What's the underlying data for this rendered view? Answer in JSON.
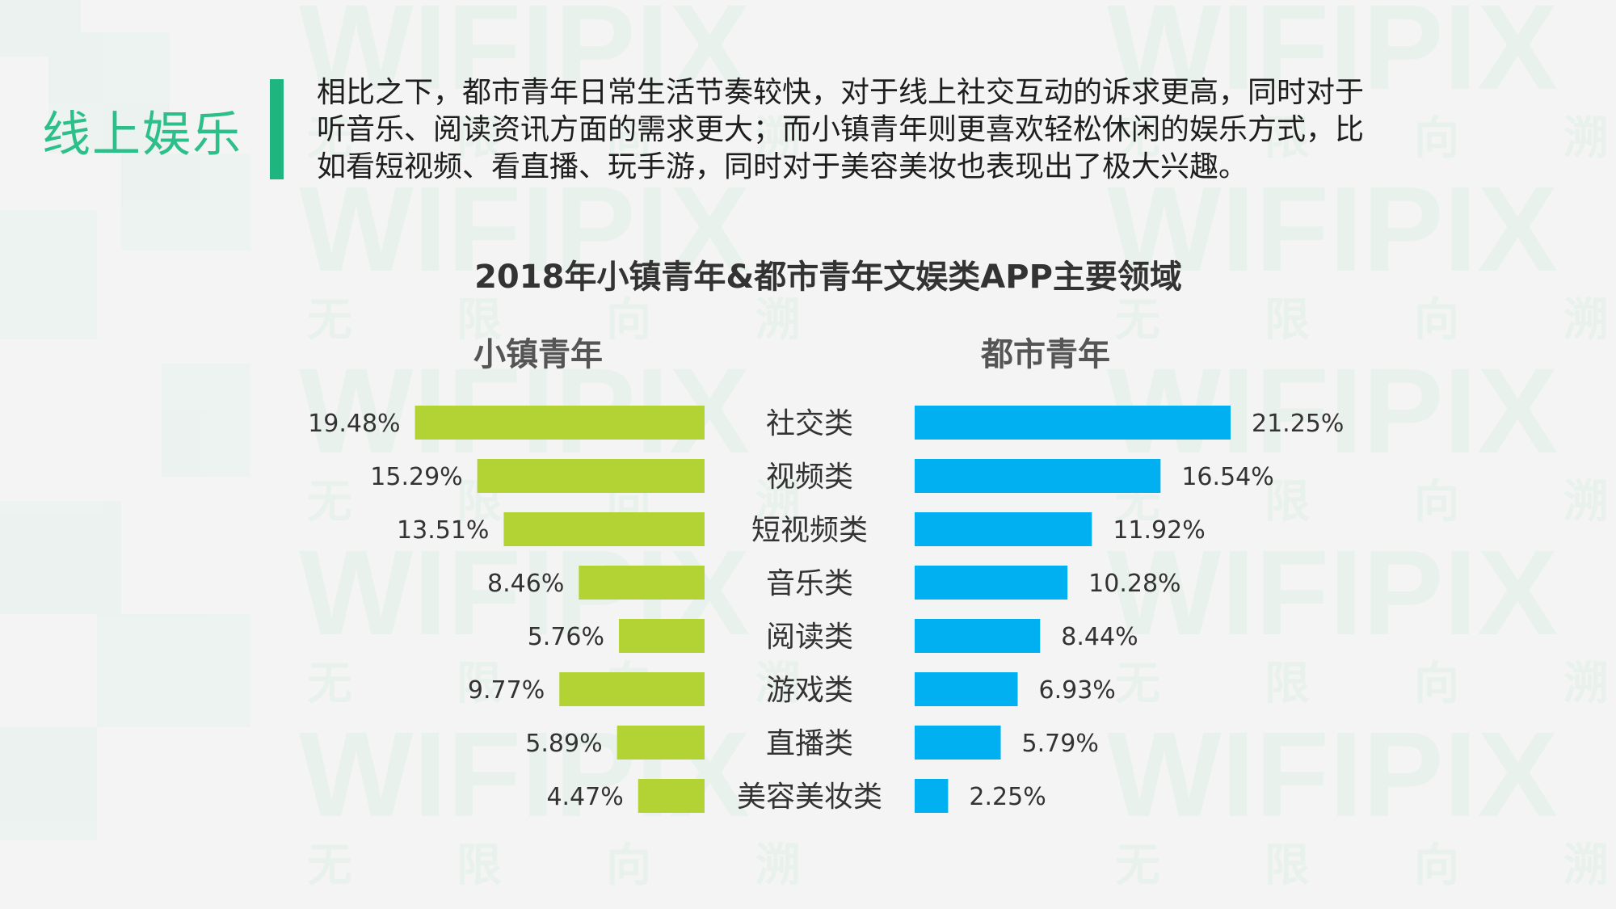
{
  "section_title": "线上娱乐",
  "intro_lines": [
    "相比之下，都市青年日常生活节奏较快，对于线上社交互动的诉求更高，同时对于",
    "听音乐、阅读资讯方面的需求更大；而小镇青年则更喜欢轻松休闲的娱乐方式，比",
    "如看短视频、看直播、玩手游，同时对于美容美妆也表现出了极大兴趣。"
  ],
  "watermark": {
    "latin": "WIFIPIX",
    "chars": [
      "无",
      "限",
      "向",
      "溯"
    ]
  },
  "colors": {
    "accent": "#1fb57f",
    "title_green": "#2dbf8a",
    "small_town": "#b3d334",
    "urban": "#00b0f0"
  },
  "chart_data": {
    "type": "bar",
    "title": "2018年小镇青年&都市青年文娱类APP主要领域",
    "categories": [
      "社交类",
      "视频类",
      "短视频类",
      "音乐类",
      "阅读类",
      "游戏类",
      "直播类",
      "美容美妆类"
    ],
    "series": [
      {
        "name": "小镇青年",
        "values": [
          19.48,
          15.29,
          13.51,
          8.46,
          5.76,
          9.77,
          5.89,
          4.47
        ],
        "labels": [
          "19.48%",
          "15.29%",
          "13.51%",
          "8.46%",
          "5.76%",
          "9.77%",
          "5.89%",
          "4.47%"
        ]
      },
      {
        "name": "都市青年",
        "values": [
          21.25,
          16.54,
          11.92,
          10.28,
          8.44,
          6.93,
          5.79,
          2.25
        ],
        "labels": [
          "21.25%",
          "16.54%",
          "11.92%",
          "10.28%",
          "8.44%",
          "6.93%",
          "5.79%",
          "2.25%"
        ]
      }
    ]
  }
}
